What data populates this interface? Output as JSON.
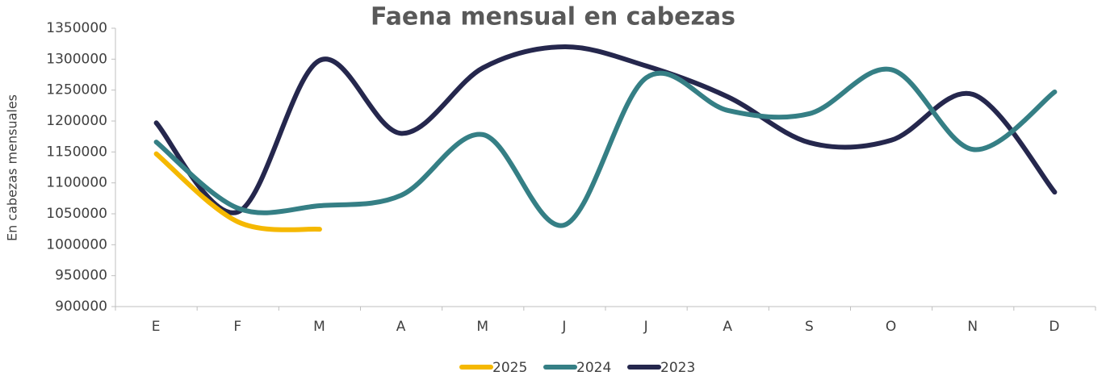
{
  "chart_data": {
    "type": "line",
    "title": "Faena mensual en cabezas",
    "y_label": "En cabezas mensuales",
    "categories": [
      "E",
      "F",
      "M",
      "A",
      "M",
      "J",
      "J",
      "A",
      "S",
      "O",
      "N",
      "D"
    ],
    "series": [
      {
        "name": "2025",
        "color": "#f5b800",
        "values": [
          1147000,
          1037000,
          1025000,
          null,
          null,
          null,
          null,
          null,
          null,
          null,
          null,
          null
        ]
      },
      {
        "name": "2024",
        "color": "#357f85",
        "values": [
          1166000,
          1059000,
          1063000,
          1080000,
          1178000,
          1032000,
          1270000,
          1217000,
          1212000,
          1283000,
          1154000,
          1247000
        ]
      },
      {
        "name": "2023",
        "color": "#25274d",
        "values": [
          1197000,
          1053000,
          1298000,
          1180000,
          1286000,
          1320000,
          1289000,
          1239000,
          1165000,
          1169000,
          1243000,
          1085000
        ]
      }
    ],
    "ylim": [
      900000,
      1350000
    ],
    "yticks": [
      900000,
      950000,
      1000000,
      1050000,
      1100000,
      1150000,
      1200000,
      1250000,
      1300000,
      1350000
    ],
    "legend": "bottom"
  }
}
